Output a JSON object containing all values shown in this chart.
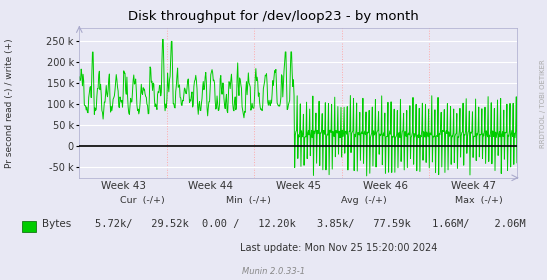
{
  "title": "Disk throughput for /dev/loop23 - by month",
  "ylabel": "Pr second read (-) / write (+)",
  "bg_color": "#e8e8f4",
  "plot_bg_color": "#e8e8f4",
  "line_color": "#00cc00",
  "grid_h_color": "#ffffff",
  "grid_v_color": "#ffaaaa",
  "zero_line_color": "#000000",
  "spine_color": "#aaaacc",
  "ylim": [
    -75000,
    280000
  ],
  "yticks": [
    -50000,
    0,
    50000,
    100000,
    150000,
    200000,
    250000
  ],
  "ytick_labels": [
    "-50 k",
    "0",
    "50 k",
    "100 k",
    "150 k",
    "200 k",
    "250 k"
  ],
  "week_labels": [
    "Week 43",
    "Week 44",
    "Week 45",
    "Week 46",
    "Week 47"
  ],
  "legend_label": "Bytes",
  "legend_color": "#00cc00",
  "cur_label": "Cur  (-/+)",
  "cur_val": "5.72k/   29.52k",
  "min_label": "Min  (-/+)",
  "min_val": "0.00 /   12.20k",
  "avg_label": "Avg  (-/+)",
  "avg_val": "3.85k/   77.59k",
  "max_label": "Max  (-/+)",
  "max_val": "1.66M/    2.06M",
  "last_update": "Last update: Mon Nov 25 15:20:00 2024",
  "munin_version": "Munin 2.0.33-1",
  "right_label": "RRDTOOL / TOBI OETIKER",
  "seed": 42
}
